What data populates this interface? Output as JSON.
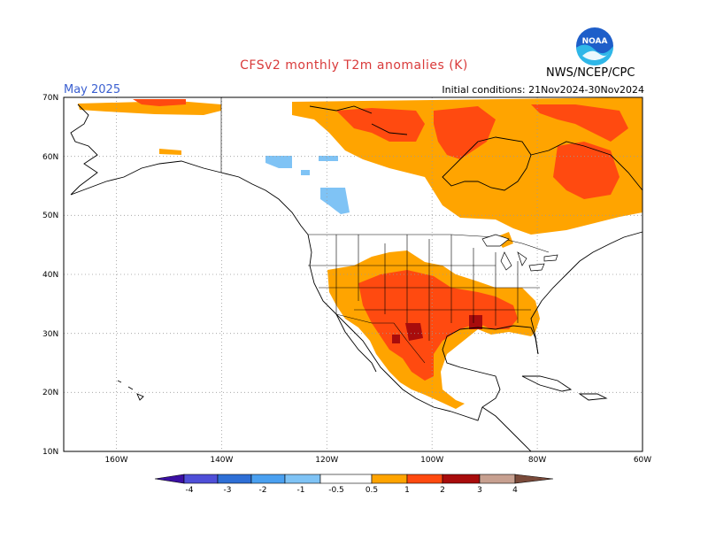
{
  "header": {
    "title": "CFSv2 monthly T2m anomalies (K)",
    "period": "May 2025",
    "initial_conditions": "Initial conditions: 21Nov2024-30Nov2024",
    "org": "NWS/NCEP/CPC",
    "logo_text": "NOAA"
  },
  "map": {
    "lat_labels": [
      "70N",
      "60N",
      "50N",
      "40N",
      "30N",
      "20N",
      "10N"
    ],
    "lon_labels": [
      "160W",
      "140W",
      "120W",
      "100W",
      "80W",
      "60W"
    ],
    "lat_range": [
      10,
      70
    ],
    "lon_range": [
      -170,
      -60
    ]
  },
  "colorbar": {
    "labels": [
      "-4",
      "-3",
      "-2",
      "-1",
      "-0.5",
      "0.5",
      "1",
      "2",
      "3",
      "4"
    ],
    "colors": [
      "#3b0fa3",
      "#4f4fd8",
      "#2e6fd6",
      "#4aa0f0",
      "#7fc3f5",
      "#ffffff",
      "#ffa400",
      "#ff4a10",
      "#a80c0c",
      "#c7a090",
      "#7a4a3a"
    ]
  },
  "anomaly_colors": {
    "0.5-1": "#ffa400",
    "1-2": "#ff4a10",
    "2-3": "#a80c0c",
    "-1--0.5": "#7fc3f5"
  }
}
